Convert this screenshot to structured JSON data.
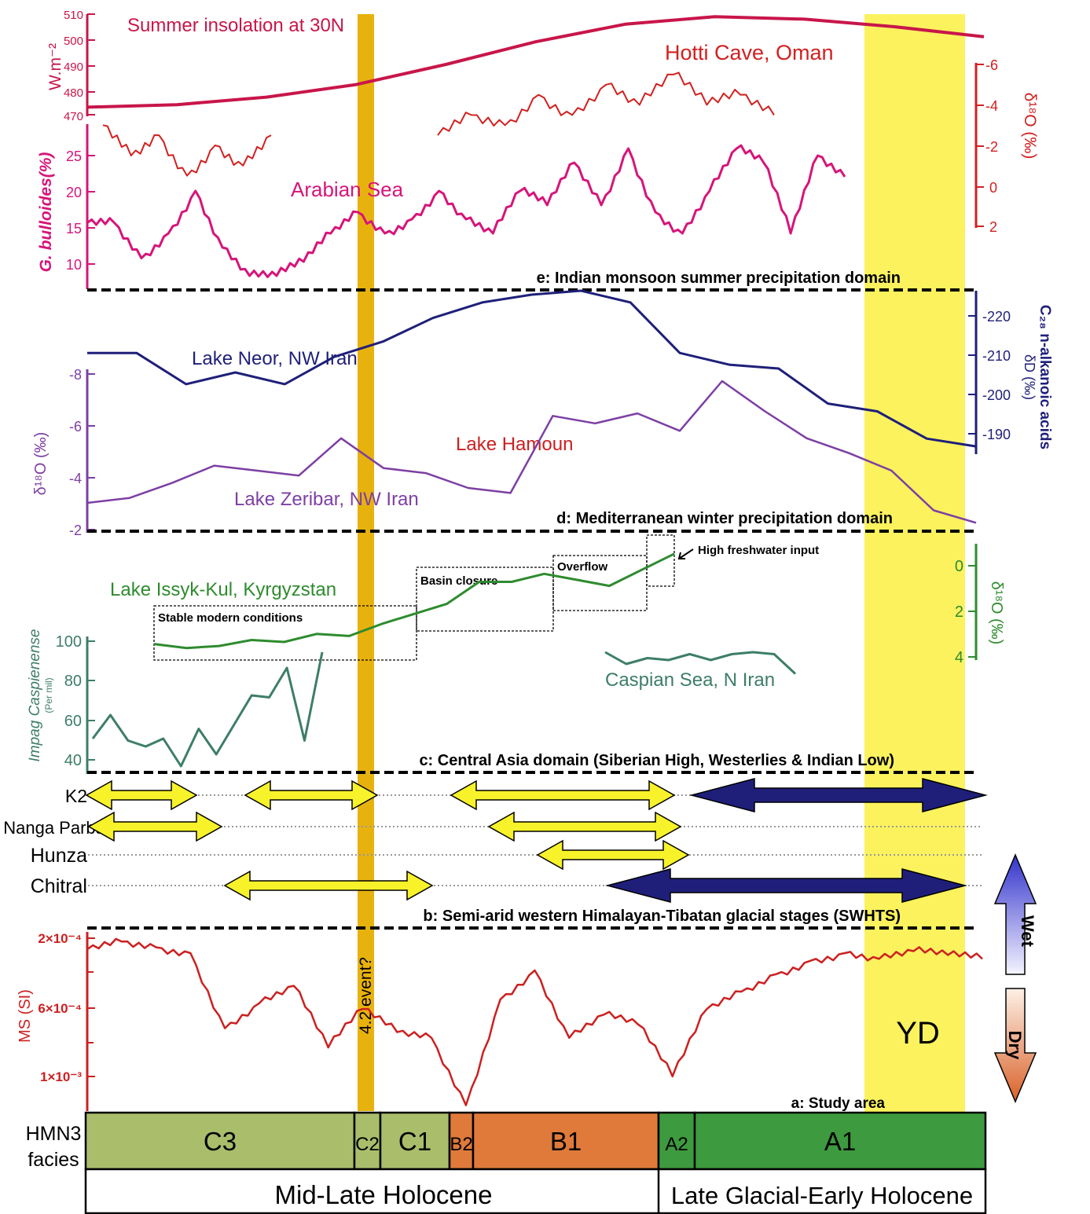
{
  "panel_e": {
    "insolation_label": "Summer insolation at 30N",
    "insolation_axis_label": "W.m⁻²",
    "insolation_ticks": [
      "510",
      "500",
      "490",
      "480",
      "470"
    ],
    "hotti_label": "Hotti Cave, Oman",
    "hotti_axis_label": "δ¹⁸O (‰)",
    "hotti_ticks": [
      "-6",
      "-4",
      "-2",
      "0",
      "2"
    ],
    "arabian_label": "Arabian Sea",
    "arabian_axis_label": "G. bulloides(%)",
    "arabian_ticks": [
      "25",
      "20",
      "15",
      "10"
    ],
    "domain_title": "e: Indian monsoon summer precipitation domain"
  },
  "panel_d": {
    "neor_label": "Lake Neor, NW Iran",
    "neor_axis_label_1": "δD (‰)",
    "neor_axis_label_2": "C₂₈ n-alkanoic acids",
    "neor_ticks": [
      "-220",
      "-210",
      "-200",
      "-190"
    ],
    "zeribar_label": "Lake Zeribar, NW Iran",
    "zeribar_axis_label": "δ¹⁸O (‰)",
    "zeribar_ticks": [
      "-8",
      "-6",
      "-4",
      "-2"
    ],
    "domain_title": "d: Mediterranean winter precipitation domain"
  },
  "panel_c": {
    "issyk_label": "Lake Issyk-Kul, Kyrgyzstan",
    "issyk_axis_label": "δ¹⁸O (‰)",
    "issyk_ticks": [
      "0",
      "2",
      "4"
    ],
    "box_labels": [
      "Stable modern conditions",
      "Basin closure",
      "Overflow"
    ],
    "freshwater_label": "High freshwater input",
    "caspian_label": "Caspian Sea, N Iran",
    "caspian_axis_label": "Impag Caspienense",
    "caspian_axis_unit": "(Per mil)",
    "caspian_ticks": [
      "100",
      "80",
      "60",
      "40"
    ],
    "domain_title": "c: Central Asia domain (Siberian High, Westerlies & Indian Low)"
  },
  "panel_b": {
    "sites": [
      "K2",
      "Nanga Parbat",
      "Hunza",
      "Chitral"
    ],
    "domain_title": "b: Semi-arid western Himalayan-Tibatan glacial stages (SWHTS)",
    "wet_label": "Wet",
    "dry_label": "Dry"
  },
  "panel_a": {
    "hamoun_label": "Lake Hamoun",
    "ms_axis_label": "MS (SI)",
    "ms_ticks": [
      "2×10⁻⁴",
      "6×10⁻⁴",
      "1×10⁻³"
    ],
    "event_label": "4.2 event?",
    "yd_label": "YD",
    "study_area_label": "a: Study area"
  },
  "facies": {
    "row_label_1": "HMN3",
    "row_label_2": "facies",
    "units": [
      {
        "label": "C3",
        "color": "#a9bd6b"
      },
      {
        "label": "C2",
        "color": "#a9bd6b"
      },
      {
        "label": "C1",
        "color": "#a9bd6b"
      },
      {
        "label": "B2",
        "color": "#e07a3a"
      },
      {
        "label": "B1",
        "color": "#e07a3a"
      },
      {
        "label": "A2",
        "color": "#3e9a3e"
      },
      {
        "label": "A1",
        "color": "#3e9a3e"
      }
    ],
    "periods": [
      "Mid-Late Holocene",
      "Late Glacial-Early Holocene"
    ]
  },
  "colors": {
    "insolation": "#c8164a",
    "hotti": "#d22020",
    "arabian": "#d6157a",
    "neor": "#1f1f7a",
    "zeribar": "#7d3fa3",
    "issyk": "#2e8b2e",
    "caspian": "#3d7d6a",
    "hamoun": "#cc2020",
    "event_band": "#e8b20e",
    "yd_band": "#fbf25e",
    "arrow_yellow": "#f7f22a",
    "arrow_blue": "#1f1f7a"
  },
  "chart_data": [
    {
      "type": "line",
      "title": "Summer insolation at 30N",
      "ylabel": "W.m⁻²",
      "ylim": [
        470,
        510
      ],
      "series": [
        {
          "name": "Summer insolation at 30N",
          "values": [
            473,
            474,
            477,
            482,
            490,
            499,
            506,
            509,
            508,
            505,
            501
          ]
        }
      ]
    },
    {
      "type": "line",
      "title": "Hotti Cave, Oman",
      "ylabel": "δ¹⁸O (‰)",
      "ylim": [
        2,
        -6
      ],
      "series": [
        {
          "name": "Hotti Cave, Oman",
          "values": [
            -3,
            -1.5,
            -2.5,
            -0.5,
            -2,
            -1,
            -2.5,
            -3.5,
            -3,
            -4.5,
            -3.5,
            -5,
            -4,
            -5.5,
            -4,
            -4.5,
            -3.5
          ]
        }
      ]
    },
    {
      "type": "line",
      "title": "Arabian Sea",
      "ylabel": "G. bulloides(%)",
      "ylim": [
        7,
        27
      ],
      "series": [
        {
          "name": "Arabian Sea",
          "values": [
            15.5,
            15.5,
            10.5,
            14,
            20,
            12,
            8,
            8,
            10,
            14,
            17,
            14,
            16,
            20,
            16,
            14,
            20,
            18,
            24,
            18,
            26,
            17,
            14,
            20,
            26,
            24,
            14,
            25,
            22
          ]
        }
      ]
    },
    {
      "type": "line",
      "title": "Lake Neor, NW Iran",
      "ylabel": "δD (‰)",
      "ylim": [
        -185,
        -227
      ],
      "series": [
        {
          "name": "Lake Neor, NW Iran",
          "values": [
            -211,
            -211,
            -203,
            -206,
            -203,
            -210,
            -214,
            -220,
            -224,
            -226,
            -227,
            -224,
            -211,
            -208,
            -207,
            -198,
            -196,
            -189,
            -187
          ]
        }
      ]
    },
    {
      "type": "line",
      "title": "Lake Zeribar, NW Iran",
      "ylabel": "δ¹⁸O (‰)",
      "ylim": [
        -1.8,
        -8.5
      ],
      "series": [
        {
          "name": "Lake Zeribar, NW Iran",
          "values": [
            -3,
            -3.2,
            -3.8,
            -4.5,
            -4.3,
            -4.1,
            -5.6,
            -4.4,
            -4.2,
            -3.6,
            -3.4,
            -6.5,
            -6.2,
            -6.6,
            -5.9,
            -7.9,
            -6.7,
            -5.6,
            -5,
            -4.3,
            -2.7,
            -2.2
          ]
        }
      ]
    },
    {
      "type": "line",
      "title": "Lake Issyk-Kul, Kyrgyzstan",
      "ylabel": "δ¹⁸O (‰)",
      "ylim": [
        4.3,
        -1.5
      ],
      "series": [
        {
          "name": "Lake Issyk-Kul, Kyrgyzstan",
          "values": [
            3.5,
            3.7,
            3.6,
            3.3,
            3.4,
            3,
            3.1,
            2.5,
            2,
            1.5,
            0.4,
            0.4,
            0,
            0.3,
            0.6,
            -0.2,
            -1
          ]
        }
      ]
    },
    {
      "type": "line",
      "title": "Caspian Sea, N Iran",
      "ylabel": "Impag Caspienense",
      "ylim": [
        35,
        105
      ],
      "series": [
        {
          "name": "Caspian Sea, N Iran",
          "values": [
            53,
            65,
            52,
            49,
            53,
            39,
            58,
            45,
            60,
            75,
            74,
            89,
            52,
            97,
            91,
            94,
            93,
            96,
            93,
            96,
            97,
            96,
            86
          ]
        }
      ]
    },
    {
      "type": "line",
      "title": "Lake Hamoun",
      "ylabel": "MS (SI)",
      "series": [
        {
          "name": "Lake Hamoun",
          "values": [
            2.4,
            2.0,
            2.3,
            2.6,
            6.5,
            5.2,
            4.3,
            7.5,
            5.5,
            6.7,
            7.0,
            10.5,
            5.0,
            3.5,
            7.0,
            5.8,
            6.3,
            9.0,
            5.5,
            4.6,
            3.7,
            3.0,
            2.6,
            2.9,
            2.5,
            2.7,
            2.9
          ]
        }
      ]
    }
  ]
}
